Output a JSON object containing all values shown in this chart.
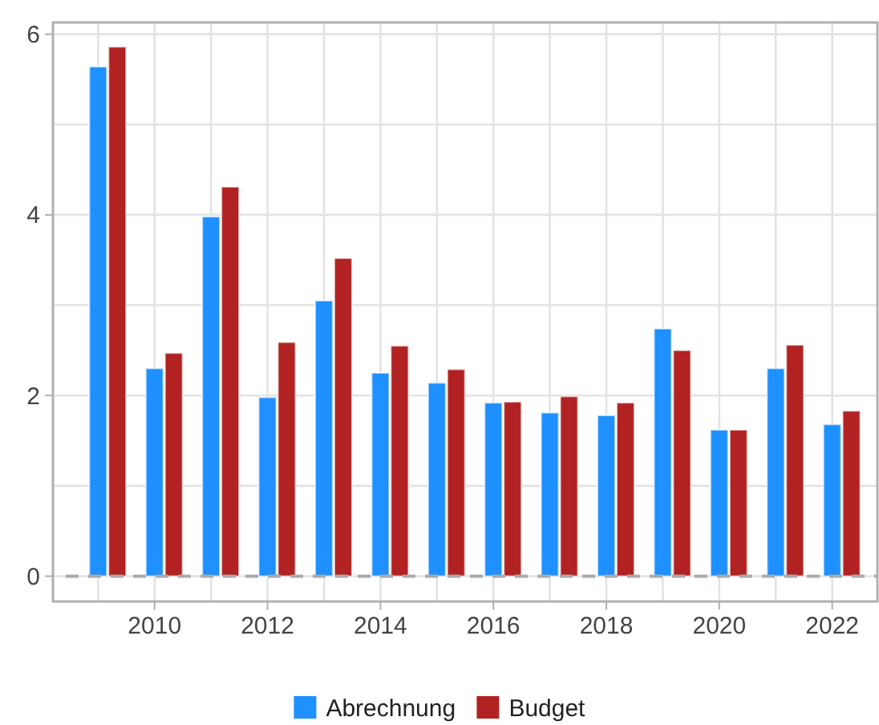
{
  "chart_data": {
    "type": "bar",
    "x": [
      2009,
      2010,
      2011,
      2012,
      2013,
      2014,
      2015,
      2016,
      2017,
      2018,
      2019,
      2020,
      2021,
      2022
    ],
    "series": [
      {
        "name": "Abrechnung",
        "color": "#1e90ff",
        "values": [
          5.64,
          2.3,
          3.98,
          1.98,
          3.05,
          2.25,
          2.14,
          1.92,
          1.81,
          1.78,
          2.74,
          1.62,
          2.3,
          1.68
        ]
      },
      {
        "name": "Budget",
        "color": "#b22222",
        "values": [
          5.86,
          2.47,
          4.31,
          2.59,
          3.52,
          2.55,
          2.29,
          1.93,
          1.99,
          1.92,
          2.5,
          1.62,
          2.56,
          1.83
        ]
      }
    ],
    "xlim": [
      2008.2,
      2022.8
    ],
    "xticks": [
      2010,
      2012,
      2014,
      2016,
      2018,
      2020,
      2022
    ],
    "ylim": [
      -0.28,
      6.13
    ],
    "yticks": [
      0,
      2,
      4,
      6
    ],
    "ref_lines": [
      {
        "axis": "y",
        "value": 0,
        "color": "#aaaaaa",
        "line_style": "dashed"
      }
    ],
    "grid": true,
    "legend": "bottom"
  }
}
